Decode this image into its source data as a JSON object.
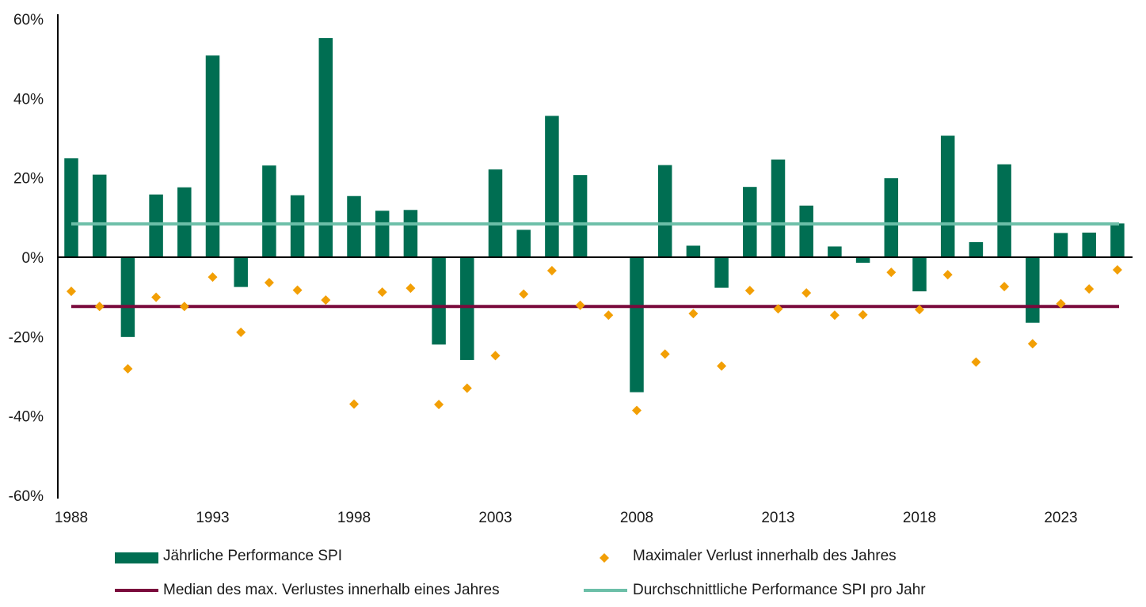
{
  "chart_data": {
    "type": "bar",
    "title": "",
    "xlabel": "",
    "ylabel": "",
    "ylim": [
      -60,
      60
    ],
    "yticks": [
      60,
      40,
      20,
      0,
      -20,
      -40,
      -60
    ],
    "ytick_labels": [
      "60%",
      "40%",
      "20%",
      "0%",
      "-20%",
      "-40%",
      "-60%"
    ],
    "xtick_labels": [
      "1988",
      "1993",
      "1998",
      "2003",
      "2008",
      "2013",
      "2018",
      "2023"
    ],
    "categories": [
      1988,
      1989,
      1990,
      1991,
      1992,
      1993,
      1994,
      1995,
      1996,
      1997,
      1998,
      1999,
      2000,
      2001,
      2002,
      2003,
      2004,
      2005,
      2006,
      2007,
      2008,
      2009,
      2010,
      2011,
      2012,
      2013,
      2014,
      2015,
      2016,
      2017,
      2018,
      2019,
      2020,
      2021,
      2022,
      2023,
      2024,
      2025
    ],
    "series": [
      {
        "name": "Jährliche Performance SPI",
        "kind": "bar",
        "color": "#006e52",
        "values": [
          24.9,
          20.8,
          -20.1,
          15.8,
          17.6,
          50.8,
          -7.5,
          23.1,
          15.6,
          55.2,
          15.4,
          11.7,
          11.9,
          -22.0,
          -25.9,
          22.1,
          6.9,
          35.6,
          20.7,
          0,
          -34.0,
          23.2,
          2.9,
          -7.7,
          17.7,
          24.6,
          13.0,
          2.7,
          -1.4,
          19.9,
          -8.6,
          30.6,
          3.8,
          23.4,
          -16.5,
          6.1,
          6.2,
          8.5
        ]
      },
      {
        "name": "Maximaler Verlust innerhalb des Jahres",
        "kind": "scatter",
        "color": "#f29f05",
        "values": [
          -8.6,
          -12.4,
          -28.1,
          -10.1,
          -12.4,
          -5.0,
          -18.9,
          -6.4,
          -8.3,
          -10.8,
          -37.0,
          -8.8,
          -7.8,
          -37.1,
          -33.0,
          -24.8,
          -9.3,
          -3.4,
          -12.1,
          -14.6,
          -38.6,
          -24.4,
          -14.2,
          -27.4,
          -8.4,
          -13.0,
          -9.0,
          -14.6,
          -14.5,
          -3.8,
          -13.2,
          -4.4,
          -26.4,
          -7.4,
          -21.8,
          -11.7,
          -8.0,
          -3.2
        ]
      },
      {
        "name": "Median des max. Verlustes innerhalb eines Jahres",
        "kind": "hline",
        "color": "#7a0a3c",
        "value": -12.4
      },
      {
        "name": "Durchschnittliche Performance SPI pro Jahr",
        "kind": "hline",
        "color": "#6cbfa8",
        "value": 8.4
      }
    ],
    "legend": "bottom"
  }
}
